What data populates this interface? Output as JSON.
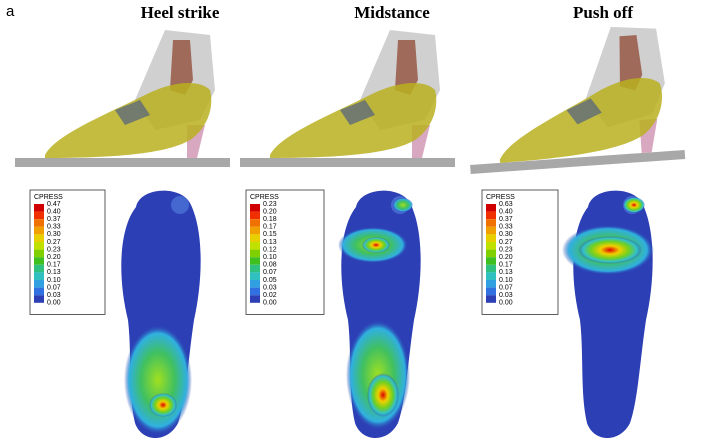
{
  "figure_label": "a",
  "panels": [
    {
      "title": "Heel strike",
      "legend": {
        "title": "CPRESS",
        "labels": [
          "0.47",
          "0.40",
          "0.37",
          "0.33",
          "0.30",
          "0.27",
          "0.23",
          "0.20",
          "0.17",
          "0.13",
          "0.10",
          "0.07",
          "0.03",
          "0.00"
        ]
      }
    },
    {
      "title": "Midstance",
      "legend": {
        "title": "CPRESS",
        "labels": [
          "0.23",
          "0.20",
          "0.18",
          "0.17",
          "0.15",
          "0.13",
          "0.12",
          "0.10",
          "0.08",
          "0.07",
          "0.05",
          "0.03",
          "0.02",
          "0.00"
        ]
      }
    },
    {
      "title": "Push off",
      "legend": {
        "title": "CPRESS",
        "labels": [
          "0.63",
          "0.40",
          "0.37",
          "0.33",
          "0.30",
          "0.27",
          "0.23",
          "0.20",
          "0.17",
          "0.13",
          "0.10",
          "0.07",
          "0.03",
          "0.00"
        ]
      }
    }
  ]
}
